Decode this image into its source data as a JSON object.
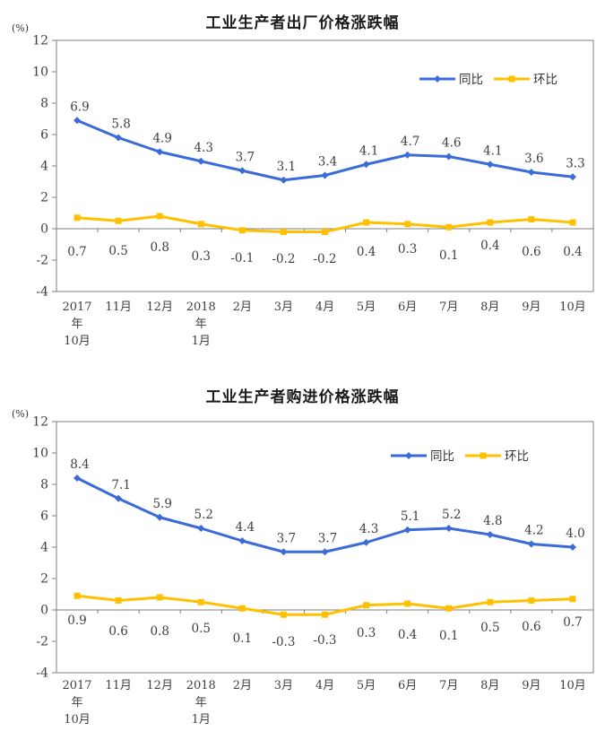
{
  "colors": {
    "yoy_blue": "#3A6BD8",
    "mom_gold": "#FFC000",
    "axis_gray": "#7f7f7f",
    "label_text": "#3f3f3f",
    "title_text": "#1a1a1a"
  },
  "chart_data": [
    {
      "type": "line",
      "title": "工业生产者出厂价格涨跌幅",
      "ylabel": "(%)",
      "xlabel": "",
      "ylim": [
        -4,
        12
      ],
      "ytick_step": 2,
      "grid": false,
      "legend_position": "top-right-inside",
      "categories": [
        "2017年10月",
        "11月",
        "12月",
        "2018年1月",
        "2月",
        "3月",
        "4月",
        "5月",
        "6月",
        "7月",
        "8月",
        "9月",
        "10月"
      ],
      "categories_multiline": [
        [
          "2017",
          "年",
          "10月"
        ],
        [
          "11月"
        ],
        [
          "12月"
        ],
        [
          "2018",
          "年",
          "1月"
        ],
        [
          "2月"
        ],
        [
          "3月"
        ],
        [
          "4月"
        ],
        [
          "5月"
        ],
        [
          "6月"
        ],
        [
          "7月"
        ],
        [
          "8月"
        ],
        [
          "9月"
        ],
        [
          "10月"
        ]
      ],
      "series": [
        {
          "name": "同比",
          "marker": "diamond",
          "color": "#3A6BD8",
          "values": [
            6.9,
            5.8,
            4.9,
            4.3,
            3.7,
            3.1,
            3.4,
            4.1,
            4.7,
            4.6,
            4.1,
            3.6,
            3.3
          ],
          "label_placement": "above-point"
        },
        {
          "name": "环比",
          "marker": "square",
          "color": "#FFC000",
          "values": [
            0.7,
            0.5,
            0.8,
            0.3,
            -0.1,
            -0.2,
            -0.2,
            0.4,
            0.3,
            0.1,
            0.4,
            0.6,
            0.4
          ],
          "label_placement": "below-axis",
          "below_label_dy": [
            30,
            29,
            25,
            35,
            37,
            38,
            38,
            30,
            27,
            34,
            23,
            30,
            30
          ]
        }
      ]
    },
    {
      "type": "line",
      "title": "工业生产者购进价格涨跌幅",
      "ylabel": "(%)",
      "xlabel": "",
      "ylim": [
        -4,
        12
      ],
      "ytick_step": 2,
      "grid": false,
      "legend_position": "top-right-inside",
      "categories": [
        "2017年10月",
        "11月",
        "12月",
        "2018年1月",
        "2月",
        "3月",
        "4月",
        "5月",
        "6月",
        "7月",
        "8月",
        "9月",
        "10月"
      ],
      "categories_multiline": [
        [
          "2017",
          "年",
          "10月"
        ],
        [
          "11月"
        ],
        [
          "12月"
        ],
        [
          "2018",
          "年",
          "1月"
        ],
        [
          "2月"
        ],
        [
          "3月"
        ],
        [
          "4月"
        ],
        [
          "5月"
        ],
        [
          "6月"
        ],
        [
          "7月"
        ],
        [
          "8月"
        ],
        [
          "9月"
        ],
        [
          "10月"
        ]
      ],
      "series": [
        {
          "name": "同比",
          "marker": "diamond",
          "color": "#3A6BD8",
          "values": [
            8.4,
            7.1,
            5.9,
            5.2,
            4.4,
            3.7,
            3.7,
            4.3,
            5.1,
            5.2,
            4.8,
            4.2,
            4.0
          ],
          "label_placement": "above-point"
        },
        {
          "name": "环比",
          "marker": "square",
          "color": "#FFC000",
          "values": [
            0.9,
            0.6,
            0.8,
            0.5,
            0.1,
            -0.3,
            -0.3,
            0.3,
            0.4,
            0.1,
            0.5,
            0.6,
            0.7
          ],
          "label_placement": "below-axis",
          "below_label_dy": [
            16,
            28,
            28,
            25,
            36,
            40,
            38,
            30,
            32,
            33,
            24,
            23,
            18
          ]
        }
      ]
    }
  ]
}
